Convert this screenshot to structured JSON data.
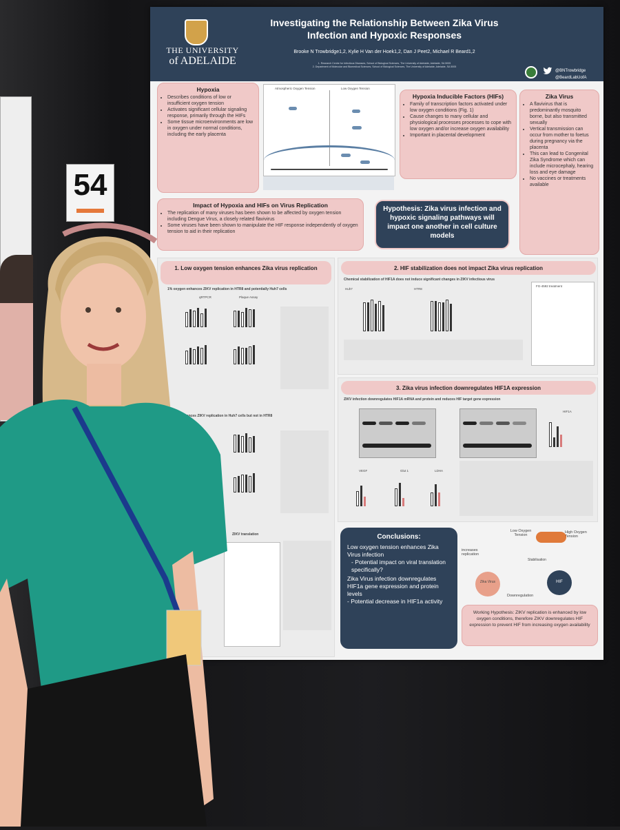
{
  "poster": {
    "number": "54",
    "title": "Investigating the Relationship Between Zika Virus Infection and Hypoxic Responses",
    "authors": "Brooke N Trowbridge1,2, Kylie H Van der Hoek1,2, Dan J Peet2, Michael R Beard1,2",
    "affiliation_1": "1. Research Centre for Infectious Diseases, School of Biological Sciences, The University of Adelaide, Adelaide, SA 5005",
    "affiliation_2": "2. Department of Molecular and Biomedical Sciences, School of Biological Sciences, The University of Adelaide, Adelaide, SA 5005",
    "university_line1": "THE UNIVERSITY",
    "university_line2": "of ADELAIDE",
    "handle_1": "@BNTrowbridge",
    "handle_2": "@BeardLabUofA",
    "colors": {
      "header": "#2f4259",
      "box": "#f0c9c8",
      "background": "#f3f3f3"
    }
  },
  "hypoxia": {
    "title": "Hypoxia",
    "items": [
      "Describes conditions of low or insufficient oxygen tension",
      "Activates significant cellular signaling response, primarily through the HIFs",
      "Some tissue microenvironments are low in oxygen under normal conditions, including the early placenta"
    ]
  },
  "hifs": {
    "title": "Hypoxia Inducible Factors (HIFs)",
    "items": [
      "Family of transcription factors activated under low oxygen conditions (Fig. 1)",
      "Cause changes to many cellular and physiological processes processes to cope with low oxygen and/or increase oxygen availability",
      "Important in placental development"
    ]
  },
  "zika": {
    "title": "Zika Virus",
    "items": [
      "A flavivirus that is predominantly mosquito borne, but also transmitted sexually",
      "Vertical transmission can occur from mother to foetus during pregnancy via the placenta",
      "This can lead to Congenital Zika Syndrome which can include microcephaly, hearing loss and eye damage",
      "No vaccines or treatments available"
    ]
  },
  "impact": {
    "title": "Impact of Hypoxia and HIFs on Virus Replication",
    "items": [
      "The replication of many viruses has been shown to be affected by oxygen tension including Dengue Virus, a closely related flavivirus",
      "Some viruses have been shown to manipulate the HIF response independently of oxygen tension to aid in their replication"
    ]
  },
  "hypothesis": "Hypothesis: Zika virus infection and hypoxic signaling pathways will impact one another in cell culture models",
  "fig1": {
    "label_left": "Atmospheric Oxygen Tension",
    "label_right": "Low Oxygen Tension"
  },
  "section1": {
    "title": "1. Low oxygen tension enhances Zika virus replication",
    "sub_a": "1% oxygen enhances ZIKV replication in HTR8 and potentially Huh7 cells",
    "sub_b": "oxygen enhances ZIKV replication in Huh7 cells but not in HTR8",
    "sub_c": "ZIKV translation",
    "label_qrtpcr": "qRTPCR",
    "label_plaque": "Plaque Assay"
  },
  "section2": {
    "title": "2. HIF stabilization does not impact Zika virus replication",
    "subtitle": "Chemical stabilization of HIF1A does not induce significant changes in ZIKV infectious virus",
    "label_huh7": "Huh7",
    "label_htr8": "HTR8",
    "label_treatment": "FG-4592 treatment"
  },
  "section3": {
    "title": "3. Zika virus infection downregulates HIF1A expression",
    "subtitle": "ZIKV infection downregulates HIF1A mRNA and protein and reduces HIF target gene expression",
    "label_hif1a": "HIF1A",
    "label_vegf": "VEGF",
    "label_glut1": "Glut 1",
    "label_ldha": "LDHA"
  },
  "conclusions": {
    "title": "Conclusions:",
    "lines": [
      "Low oxygen tension enhances Zika Virus infection",
      "- Potential impact on viral translation specifically?",
      "Zika Virus infection downregulates HIF1a gene expression and protein levels",
      "- Potential decrease in HIF1a activity"
    ]
  },
  "model": {
    "low_o2": "Low Oxygen Tension",
    "high_o2": "High Oxygen Tension",
    "increases": "increases replication",
    "stabilisation": "Stabilisation",
    "downregulation": "Downregulation",
    "zika": "Zika Virus",
    "hif": "HIF"
  },
  "working_hypothesis": "Working Hypothesis: ZIKV replication is enhanced by low oxygen conditions, therefore ZIKV downregulates HIF expression to prevent HIF from increasing oxygen availability"
}
